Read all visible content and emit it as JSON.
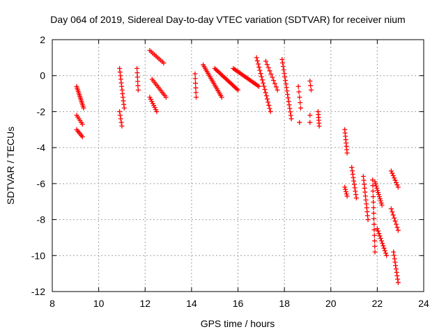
{
  "chart_data": {
    "type": "scatter",
    "title": "Day 064 of 2019, Sidereal Day-to-day VTEC variation (SDTVAR) for receiver nium",
    "xlabel": "GPS time / hours",
    "ylabel": "SDTVAR / TECUs",
    "xlim": [
      8,
      24
    ],
    "ylim": [
      -12,
      2
    ],
    "xticks": [
      8,
      10,
      12,
      14,
      16,
      18,
      20,
      22,
      24
    ],
    "yticks": [
      2,
      0,
      -2,
      -4,
      -6,
      -8,
      -10,
      -12
    ],
    "xtick_labels": [
      "8",
      "10",
      "12",
      "14",
      "16",
      "18",
      "20",
      "22",
      "24"
    ],
    "ytick_labels": [
      "2",
      "0",
      "-2",
      "-4",
      "-6",
      "-8",
      "-10",
      "-12"
    ],
    "grid": true,
    "marker": "+",
    "color": "#ff0000",
    "segments": [
      {
        "x0": 9.05,
        "x1": 9.35,
        "y_from": -0.6,
        "y_to": -1.8,
        "n": 14
      },
      {
        "x0": 9.05,
        "x1": 9.3,
        "y_from": -2.2,
        "y_to": -2.7,
        "n": 6
      },
      {
        "x0": 9.05,
        "x1": 9.3,
        "y_from": -3.0,
        "y_to": -3.4,
        "n": 6
      },
      {
        "x0": 10.9,
        "x1": 11.1,
        "y_from": 0.4,
        "y_to": -1.8,
        "n": 12
      },
      {
        "x0": 10.9,
        "x1": 11.0,
        "y_from": -2.0,
        "y_to": -2.8,
        "n": 5
      },
      {
        "x0": 11.65,
        "x1": 11.7,
        "y_from": 0.4,
        "y_to": -0.8,
        "n": 6
      },
      {
        "x0": 12.2,
        "x1": 12.8,
        "y_from": 1.4,
        "y_to": 0.7,
        "n": 10
      },
      {
        "x0": 12.3,
        "x1": 12.9,
        "y_from": -0.2,
        "y_to": -1.2,
        "n": 12
      },
      {
        "x0": 12.2,
        "x1": 12.5,
        "y_from": -1.2,
        "y_to": -2.0,
        "n": 8
      },
      {
        "x0": 14.15,
        "x1": 14.2,
        "y_from": 0.1,
        "y_to": -1.2,
        "n": 6
      },
      {
        "x0": 14.5,
        "x1": 15.3,
        "y_from": 0.6,
        "y_to": -1.2,
        "n": 20
      },
      {
        "x0": 15.0,
        "x1": 16.0,
        "y_from": 0.4,
        "y_to": -0.8,
        "n": 22
      },
      {
        "x0": 15.8,
        "x1": 16.9,
        "y_from": 0.4,
        "y_to": -0.6,
        "n": 22
      },
      {
        "x0": 16.8,
        "x1": 17.4,
        "y_from": 1.0,
        "y_to": -2.0,
        "n": 18
      },
      {
        "x0": 17.2,
        "x1": 17.7,
        "y_from": 0.8,
        "y_to": -0.8,
        "n": 10
      },
      {
        "x0": 17.9,
        "x1": 18.3,
        "y_from": 0.9,
        "y_to": -2.4,
        "n": 18
      },
      {
        "x0": 18.6,
        "x1": 18.7,
        "y_from": -0.6,
        "y_to": -1.8,
        "n": 5
      },
      {
        "x0": 18.65,
        "x1": 18.65,
        "y_from": -2.6,
        "y_to": -2.6,
        "n": 1
      },
      {
        "x0": 19.1,
        "x1": 19.15,
        "y_from": -0.3,
        "y_to": -0.8,
        "n": 3
      },
      {
        "x0": 19.1,
        "x1": 19.1,
        "y_from": -2.2,
        "y_to": -2.6,
        "n": 2
      },
      {
        "x0": 19.45,
        "x1": 19.5,
        "y_from": -2.0,
        "y_to": -2.8,
        "n": 6
      },
      {
        "x0": 20.6,
        "x1": 20.7,
        "y_from": -3.0,
        "y_to": -4.3,
        "n": 8
      },
      {
        "x0": 20.6,
        "x1": 20.7,
        "y_from": -6.2,
        "y_to": -6.7,
        "n": 5
      },
      {
        "x0": 20.9,
        "x1": 21.1,
        "y_from": -5.1,
        "y_to": -6.8,
        "n": 10
      },
      {
        "x0": 21.4,
        "x1": 21.6,
        "y_from": -5.6,
        "y_to": -8.0,
        "n": 12
      },
      {
        "x0": 21.8,
        "x1": 21.9,
        "y_from": -5.8,
        "y_to": -9.8,
        "n": 14
      },
      {
        "x0": 21.9,
        "x1": 22.2,
        "y_from": -5.9,
        "y_to": -7.2,
        "n": 12
      },
      {
        "x0": 22.0,
        "x1": 22.4,
        "y_from": -8.5,
        "y_to": -10.0,
        "n": 12
      },
      {
        "x0": 22.6,
        "x1": 22.9,
        "y_from": -5.3,
        "y_to": -6.2,
        "n": 8
      },
      {
        "x0": 22.6,
        "x1": 22.9,
        "y_from": -7.4,
        "y_to": -8.6,
        "n": 8
      },
      {
        "x0": 22.7,
        "x1": 22.9,
        "y_from": -9.8,
        "y_to": -11.5,
        "n": 10
      }
    ]
  }
}
